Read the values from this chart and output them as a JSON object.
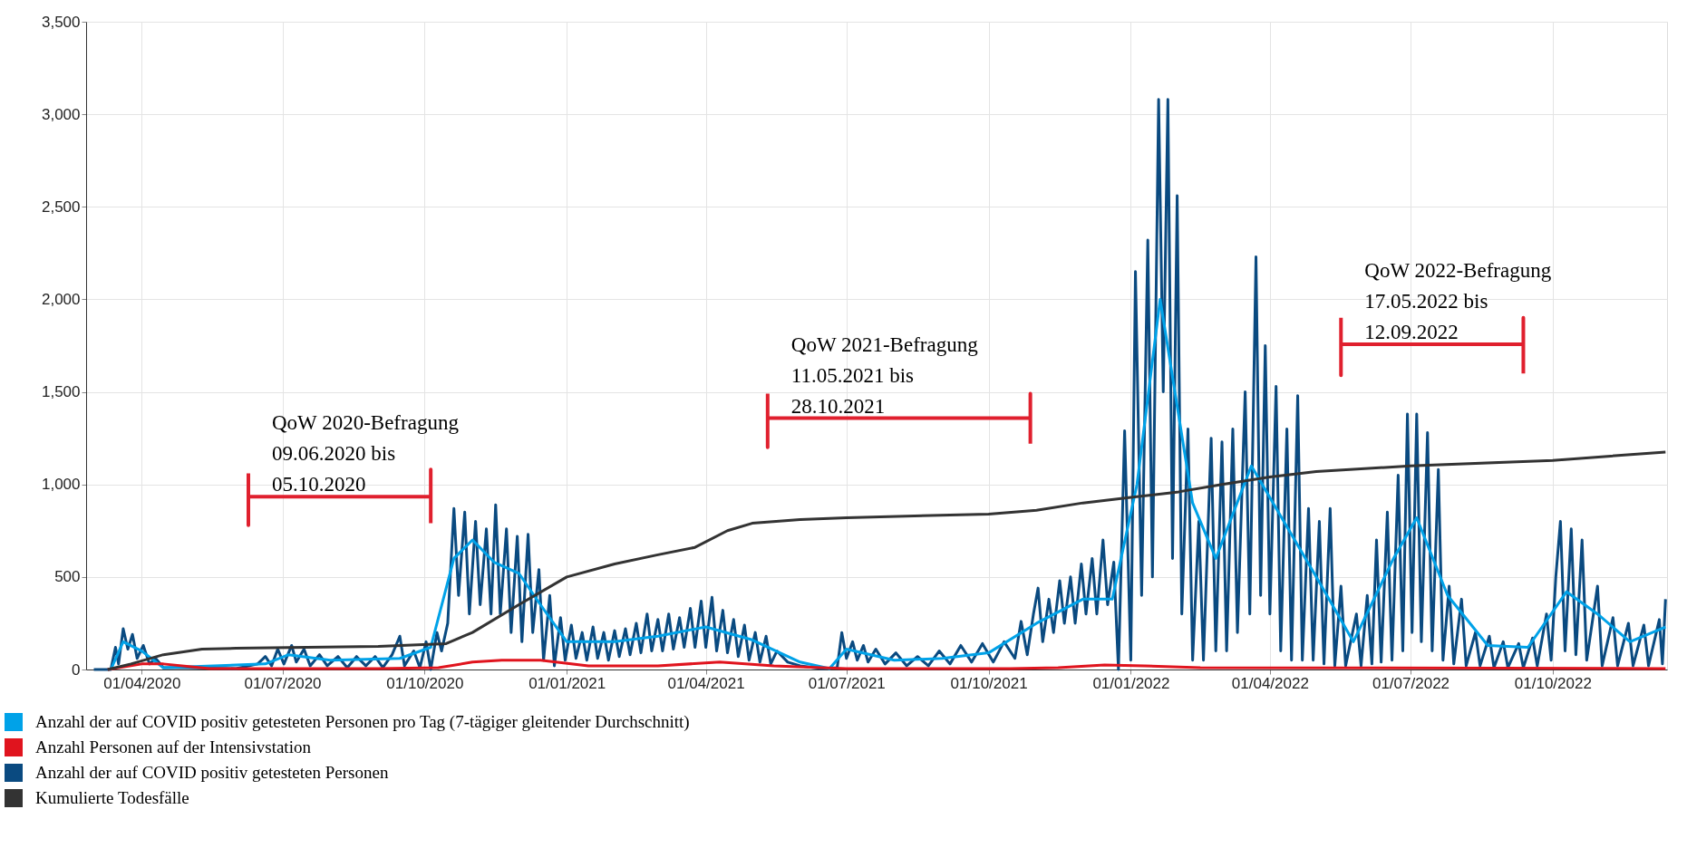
{
  "chart_data": {
    "type": "line",
    "xlim": [
      "2020-02-25",
      "2022-12-14"
    ],
    "xticks": [
      {
        "value": "2020-04-01",
        "label": "01/04/2020"
      },
      {
        "value": "2020-07-01",
        "label": "01/07/2020"
      },
      {
        "value": "2020-10-01",
        "label": "01/10/2020"
      },
      {
        "value": "2021-01-01",
        "label": "01/01/2021"
      },
      {
        "value": "2021-04-01",
        "label": "01/04/2021"
      },
      {
        "value": "2021-07-01",
        "label": "01/07/2021"
      },
      {
        "value": "2021-10-01",
        "label": "01/10/2021"
      },
      {
        "value": "2022-01-01",
        "label": "01/01/2022"
      },
      {
        "value": "2022-04-01",
        "label": "01/04/2022"
      },
      {
        "value": "2022-07-01",
        "label": "01/07/2022"
      },
      {
        "value": "2022-10-01",
        "label": "01/10/2022"
      }
    ],
    "ylim": [
      0,
      3500
    ],
    "yticks": [
      0,
      500,
      {
        "value": 1000,
        "label": "1,000"
      },
      {
        "value": 1500,
        "label": "1,500"
      },
      {
        "value": 2000,
        "label": "2,000"
      },
      {
        "value": 2500,
        "label": "2,500"
      },
      {
        "value": 3000,
        "label": "3,000"
      },
      {
        "value": 3500,
        "label": "3,500"
      }
    ],
    "grid": true,
    "legend": "bottom",
    "series": [
      {
        "name": "Anzahl der auf COVID positiv getesteten Personen pro Tag (7-tägiger gleitender Durchschnitt)",
        "color": "#00a2e8",
        "x": [
          "2020-03-12",
          "2020-03-20",
          "2020-04-01",
          "2020-04-15",
          "2020-06-20",
          "2020-07-05",
          "2020-08-01",
          "2020-09-15",
          "2020-10-05",
          "2020-10-20",
          "2020-11-01",
          "2020-11-15",
          "2020-12-01",
          "2020-12-15",
          "2021-01-01",
          "2021-02-01",
          "2021-03-01",
          "2021-04-01",
          "2021-05-01",
          "2021-06-01",
          "2021-06-20",
          "2021-07-01",
          "2021-08-01",
          "2021-09-01",
          "2021-10-01",
          "2021-11-01",
          "2021-12-01",
          "2021-12-20",
          "2022-01-05",
          "2022-01-20",
          "2022-02-10",
          "2022-02-25",
          "2022-03-20",
          "2022-04-10",
          "2022-05-01",
          "2022-05-25",
          "2022-06-20",
          "2022-07-05",
          "2022-07-25",
          "2022-08-20",
          "2022-09-15",
          "2022-10-10",
          "2022-10-30",
          "2022-11-20",
          "2022-12-13"
        ],
        "values": [
          0,
          150,
          100,
          10,
          30,
          80,
          50,
          60,
          120,
          600,
          700,
          580,
          520,
          350,
          150,
          150,
          180,
          230,
          160,
          40,
          5,
          110,
          50,
          60,
          90,
          250,
          380,
          380,
          1000,
          2000,
          900,
          600,
          1100,
          800,
          500,
          150,
          600,
          820,
          400,
          130,
          120,
          420,
          300,
          150,
          230
        ]
      },
      {
        "name": "Anzahl  Personen auf der Intensivstation",
        "color": "#e0141e",
        "x": [
          "2020-03-10",
          "2020-04-01",
          "2020-04-15",
          "2020-05-15",
          "2020-09-01",
          "2020-10-10",
          "2020-11-01",
          "2020-11-20",
          "2020-12-15",
          "2021-01-15",
          "2021-03-01",
          "2021-04-10",
          "2021-05-15",
          "2021-07-01",
          "2021-10-15",
          "2021-11-15",
          "2021-12-15",
          "2022-01-10",
          "2022-02-15",
          "2022-12-13"
        ],
        "values": [
          0,
          30,
          30,
          5,
          5,
          10,
          40,
          50,
          50,
          20,
          20,
          40,
          20,
          5,
          5,
          10,
          25,
          20,
          10,
          5
        ]
      },
      {
        "name": "Anzahl  der auf COVID positiv getesteten Personen",
        "color": "#0a4a80",
        "x": [
          "2020-03-01",
          "2020-03-12",
          "2020-03-15",
          "2020-03-17",
          "2020-03-20",
          "2020-03-23",
          "2020-03-26",
          "2020-03-29",
          "2020-04-02",
          "2020-04-06",
          "2020-04-10",
          "2020-04-15",
          "2020-05-01",
          "2020-06-01",
          "2020-06-15",
          "2020-06-20",
          "2020-06-24",
          "2020-06-28",
          "2020-07-02",
          "2020-07-07",
          "2020-07-10",
          "2020-07-15",
          "2020-07-19",
          "2020-07-25",
          "2020-07-30",
          "2020-08-06",
          "2020-08-12",
          "2020-08-18",
          "2020-08-24",
          "2020-08-30",
          "2020-09-04",
          "2020-09-10",
          "2020-09-15",
          "2020-09-18",
          "2020-09-24",
          "2020-09-28",
          "2020-10-02",
          "2020-10-05",
          "2020-10-09",
          "2020-10-12",
          "2020-10-16",
          "2020-10-20",
          "2020-10-23",
          "2020-10-27",
          "2020-10-30",
          "2020-11-03",
          "2020-11-06",
          "2020-11-10",
          "2020-11-13",
          "2020-11-16",
          "2020-11-19",
          "2020-11-23",
          "2020-11-26",
          "2020-11-30",
          "2020-12-03",
          "2020-12-07",
          "2020-12-10",
          "2020-12-14",
          "2020-12-17",
          "2020-12-21",
          "2020-12-24",
          "2020-12-28",
          "2020-12-31",
          "2021-01-04",
          "2021-01-07",
          "2021-01-11",
          "2021-01-14",
          "2021-01-18",
          "2021-01-21",
          "2021-01-25",
          "2021-01-28",
          "2021-02-01",
          "2021-02-04",
          "2021-02-08",
          "2021-02-11",
          "2021-02-15",
          "2021-02-18",
          "2021-02-22",
          "2021-02-25",
          "2021-03-01",
          "2021-03-04",
          "2021-03-08",
          "2021-03-11",
          "2021-03-15",
          "2021-03-18",
          "2021-03-22",
          "2021-03-25",
          "2021-03-29",
          "2021-04-01",
          "2021-04-05",
          "2021-04-08",
          "2021-04-12",
          "2021-04-15",
          "2021-04-19",
          "2021-04-22",
          "2021-04-26",
          "2021-04-29",
          "2021-05-03",
          "2021-05-06",
          "2021-05-10",
          "2021-05-13",
          "2021-05-17",
          "2021-05-24",
          "2021-06-01",
          "2021-06-15",
          "2021-06-25",
          "2021-06-28",
          "2021-07-01",
          "2021-07-05",
          "2021-07-08",
          "2021-07-12",
          "2021-07-15",
          "2021-07-20",
          "2021-07-26",
          "2021-08-02",
          "2021-08-09",
          "2021-08-16",
          "2021-08-23",
          "2021-08-30",
          "2021-09-06",
          "2021-09-13",
          "2021-09-20",
          "2021-09-27",
          "2021-10-04",
          "2021-10-11",
          "2021-10-18",
          "2021-10-22",
          "2021-10-26",
          "2021-10-30",
          "2021-11-02",
          "2021-11-05",
          "2021-11-09",
          "2021-11-12",
          "2021-11-16",
          "2021-11-19",
          "2021-11-23",
          "2021-11-26",
          "2021-11-30",
          "2021-12-03",
          "2021-12-07",
          "2021-12-10",
          "2021-12-14",
          "2021-12-17",
          "2021-12-21",
          "2021-12-24",
          "2021-12-28",
          "2022-01-01",
          "2022-01-04",
          "2022-01-08",
          "2022-01-12",
          "2022-01-15",
          "2022-01-19",
          "2022-01-22",
          "2022-01-25",
          "2022-01-28",
          "2022-01-31",
          "2022-02-03",
          "2022-02-07",
          "2022-02-10",
          "2022-02-14",
          "2022-02-17",
          "2022-02-22",
          "2022-02-25",
          "2022-03-01",
          "2022-03-04",
          "2022-03-08",
          "2022-03-11",
          "2022-03-16",
          "2022-03-19",
          "2022-03-23",
          "2022-03-26",
          "2022-03-29",
          "2022-04-01",
          "2022-04-05",
          "2022-04-08",
          "2022-04-12",
          "2022-04-15",
          "2022-04-19",
          "2022-04-22",
          "2022-04-26",
          "2022-04-29",
          "2022-05-03",
          "2022-05-06",
          "2022-05-10",
          "2022-05-13",
          "2022-05-17",
          "2022-05-20",
          "2022-05-27",
          "2022-05-30",
          "2022-06-03",
          "2022-06-06",
          "2022-06-09",
          "2022-06-12",
          "2022-06-16",
          "2022-06-19",
          "2022-06-23",
          "2022-06-26",
          "2022-06-29",
          "2022-07-02",
          "2022-07-05",
          "2022-07-08",
          "2022-07-12",
          "2022-07-15",
          "2022-07-19",
          "2022-07-22",
          "2022-07-26",
          "2022-07-29",
          "2022-08-03",
          "2022-08-06",
          "2022-08-12",
          "2022-08-15",
          "2022-08-21",
          "2022-08-24",
          "2022-08-30",
          "2022-09-02",
          "2022-09-09",
          "2022-09-12",
          "2022-09-18",
          "2022-09-21",
          "2022-09-27",
          "2022-09-30",
          "2022-10-03",
          "2022-10-06",
          "2022-10-09",
          "2022-10-13",
          "2022-10-16",
          "2022-10-20",
          "2022-10-23",
          "2022-10-30",
          "2022-11-02",
          "2022-11-09",
          "2022-11-12",
          "2022-11-19",
          "2022-11-22",
          "2022-11-29",
          "2022-12-02",
          "2022-12-09",
          "2022-12-11",
          "2022-12-13"
        ],
        "values": [
          0,
          0,
          120,
          30,
          220,
          110,
          190,
          60,
          130,
          30,
          60,
          10,
          10,
          5,
          30,
          70,
          20,
          110,
          30,
          130,
          40,
          110,
          20,
          80,
          20,
          70,
          10,
          70,
          20,
          70,
          10,
          80,
          180,
          20,
          100,
          10,
          150,
          0,
          200,
          100,
          250,
          870,
          400,
          850,
          300,
          800,
          350,
          760,
          300,
          890,
          300,
          760,
          200,
          720,
          150,
          730,
          200,
          540,
          50,
          400,
          20,
          280,
          50,
          240,
          60,
          200,
          50,
          230,
          60,
          200,
          50,
          210,
          70,
          220,
          80,
          250,
          90,
          300,
          100,
          270,
          100,
          300,
          110,
          280,
          120,
          330,
          120,
          370,
          120,
          390,
          100,
          320,
          90,
          270,
          70,
          240,
          50,
          200,
          40,
          180,
          30,
          100,
          40,
          20,
          5,
          10,
          200,
          60,
          150,
          50,
          130,
          40,
          110,
          30,
          90,
          20,
          70,
          20,
          100,
          30,
          130,
          40,
          140,
          40,
          150,
          60,
          260,
          80,
          300,
          440,
          150,
          380,
          200,
          480,
          250,
          500,
          250,
          570,
          300,
          600,
          300,
          700,
          350,
          580,
          0,
          1290,
          50,
          2150,
          400,
          2320,
          500,
          3080,
          1500,
          3080,
          600,
          2560,
          300,
          1300,
          50,
          800,
          50,
          1250,
          100,
          1230,
          100,
          1300,
          200,
          1500,
          300,
          2230,
          400,
          1750,
          300,
          1530,
          100,
          1300,
          50,
          1480,
          50,
          870,
          50,
          800,
          30,
          870,
          20,
          450,
          20,
          300,
          20,
          400,
          30,
          700,
          40,
          850,
          50,
          1050,
          100,
          1380,
          200,
          1380,
          150,
          1280,
          100,
          1080,
          50,
          450,
          30,
          380,
          20,
          200,
          20,
          180,
          10,
          150,
          10,
          140,
          10,
          170,
          20,
          300,
          50,
          500,
          800,
          100,
          760,
          80,
          700,
          50,
          450,
          20,
          280,
          20,
          250,
          20,
          240,
          20,
          270,
          30,
          380
        ]
      },
      {
        "name": "Kumulierte Todesfälle",
        "color": "#333333",
        "x": [
          "2020-03-10",
          "2020-03-25",
          "2020-04-15",
          "2020-05-10",
          "2020-06-01",
          "2020-09-01",
          "2020-10-15",
          "2020-11-01",
          "2020-12-01",
          "2021-01-01",
          "2021-02-01",
          "2021-03-01",
          "2021-03-25",
          "2021-04-15",
          "2021-05-01",
          "2021-06-01",
          "2021-07-01",
          "2021-10-01",
          "2021-11-01",
          "2021-12-01",
          "2022-01-01",
          "2022-02-01",
          "2022-03-01",
          "2022-04-01",
          "2022-05-01",
          "2022-07-01",
          "2022-10-01",
          "2022-12-13"
        ],
        "values": [
          0,
          30,
          80,
          110,
          115,
          125,
          140,
          200,
          350,
          500,
          570,
          620,
          660,
          750,
          790,
          810,
          820,
          840,
          860,
          900,
          930,
          960,
          1000,
          1040,
          1070,
          1100,
          1130,
          1175
        ]
      },
      {
        "type": "line",
        "color": "#e0202e",
        "x": [
          "2020-06-09",
          "2020-06-09",
          "2020-06-09",
          "2020-10-05",
          "2020-10-05",
          "2020-10-05"
        ],
        "values": [
          1060,
          780,
          934,
          934,
          1080,
          790
        ]
      },
      {
        "type": "line",
        "color": "#e0202e",
        "x": [
          "2021-05-11",
          "2021-05-11",
          "2021-05-11",
          "2021-10-28",
          "2021-10-28",
          "2021-10-28"
        ],
        "values": [
          1490,
          1200,
          1358,
          1358,
          1490,
          1220
        ]
      },
      {
        "type": "line",
        "color": "#e0202e",
        "x": [
          "2022-05-17",
          "2022-05-17",
          "2022-05-17",
          "2022-09-12",
          "2022-09-12",
          "2022-09-12"
        ],
        "values": [
          1900,
          1590,
          1757,
          1757,
          1900,
          1600
        ]
      }
    ],
    "annotations": [
      {
        "text": "QoW 2020-Befragung\n09.06.2020 bis\n05.10.2020",
        "x": "2020-06-09",
        "y": 934
      },
      {
        "text": "QoW 2021-Befragung\n11.05.2021 bis\n28.10.2021",
        "x": "2021-05-11",
        "y": 1358
      },
      {
        "text": "QoW 2022-Befragung\n17.05.2022 bis\n12.09.2022",
        "x": "2022-05-17",
        "y": 1757
      }
    ]
  }
}
